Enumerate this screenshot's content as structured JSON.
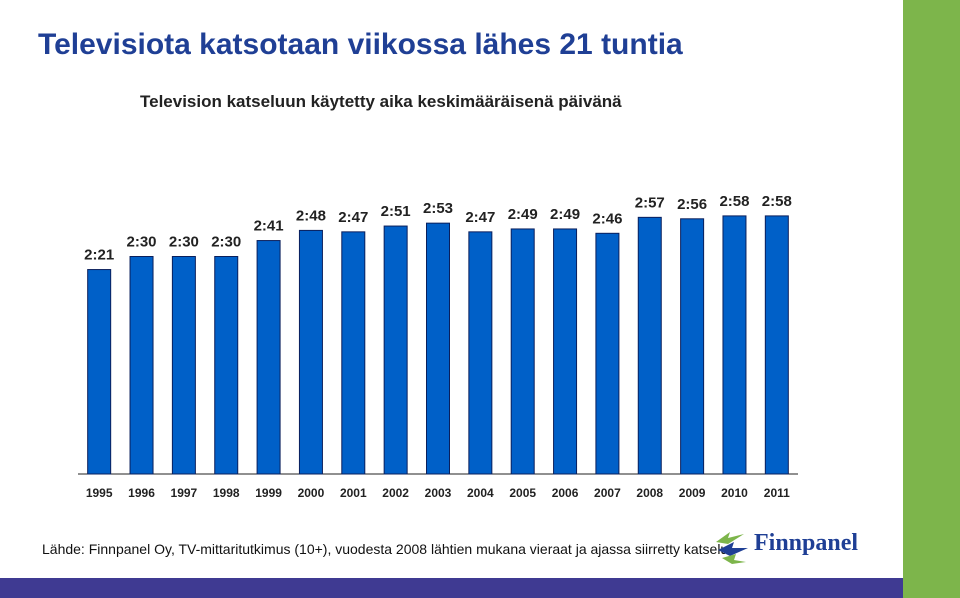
{
  "title": "Televisiota katsotaan viikossa lähes 21 tuntia",
  "subtitle": "Television katseluun käytetty aika keskimääräisenä päivänä",
  "source": "Lähde: Finnpanel Oy, TV-mittaritutkimus (10+), vuodesta 2008 lähtien mukana vieraat ja ajassa siirretty katselu",
  "logo": {
    "text": "Finnpanel",
    "icon": "finnpanel-arrows-logo"
  },
  "colors": {
    "bar": "#0060c8",
    "bar_edge": "#0a1f5c",
    "title": "#1f3f95",
    "accent_green": "#7db54b",
    "bottom_strip": "#3f3a92"
  },
  "chart_data": {
    "type": "bar",
    "categories": [
      "1995",
      "1996",
      "1997",
      "1998",
      "1999",
      "2000",
      "2001",
      "2002",
      "2003",
      "2004",
      "2005",
      "2006",
      "2007",
      "2008",
      "2009",
      "2010",
      "2011"
    ],
    "values": [
      141,
      150,
      150,
      150,
      161,
      168,
      167,
      171,
      173,
      167,
      169,
      169,
      166,
      177,
      176,
      178,
      178
    ],
    "value_labels": [
      "2:21",
      "2:30",
      "2:30",
      "2:30",
      "2:41",
      "2:48",
      "2:47",
      "2:51",
      "2:53",
      "2:47",
      "2:49",
      "2:49",
      "2:46",
      "2:57",
      "2:56",
      "2:58",
      "2:58"
    ],
    "value_unit": "minutes",
    "title": "Television katseluun käytetty aika keskimääräisenä päivänä",
    "xlabel": "",
    "ylabel": "",
    "ylim": [
      0,
      200
    ],
    "grid": false,
    "legend": "none"
  }
}
